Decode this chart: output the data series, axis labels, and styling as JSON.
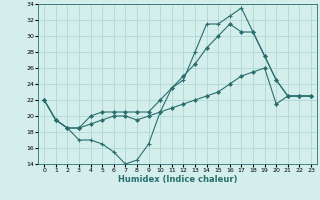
{
  "xlabel": "Humidex (Indice chaleur)",
  "ylabel": "",
  "bg_color": "#d4eeec",
  "grid_color": "#aed8d6",
  "line_color": "#2a6e6e",
  "xlim": [
    -0.5,
    23.5
  ],
  "ylim": [
    14,
    34
  ],
  "xticks": [
    0,
    1,
    2,
    3,
    4,
    5,
    6,
    7,
    8,
    9,
    10,
    11,
    12,
    13,
    14,
    15,
    16,
    17,
    18,
    19,
    20,
    21,
    22,
    23
  ],
  "yticks": [
    14,
    16,
    18,
    20,
    22,
    24,
    26,
    28,
    30,
    32,
    34
  ],
  "line1_x": [
    0,
    1,
    2,
    3,
    4,
    5,
    6,
    7,
    8,
    9,
    10,
    11,
    12,
    13,
    14,
    15,
    16,
    17,
    18,
    19,
    20,
    21,
    22,
    23
  ],
  "line1_y": [
    22,
    19.5,
    18.5,
    17.0,
    17.0,
    16.5,
    15.5,
    14.0,
    14.5,
    16.5,
    20.5,
    23.5,
    24.5,
    28.0,
    31.5,
    31.5,
    32.5,
    33.5,
    30.5,
    27.5,
    24.5,
    22.5,
    22.5,
    22.5
  ],
  "line2_x": [
    0,
    1,
    2,
    3,
    4,
    5,
    6,
    7,
    8,
    9,
    10,
    11,
    12,
    13,
    14,
    15,
    16,
    17,
    18,
    19,
    20,
    21,
    22,
    23
  ],
  "line2_y": [
    22,
    19.5,
    18.5,
    18.5,
    20.0,
    20.5,
    20.5,
    20.5,
    20.5,
    20.5,
    22.0,
    23.5,
    25.0,
    26.5,
    28.5,
    30.0,
    31.5,
    30.5,
    30.5,
    27.5,
    24.5,
    22.5,
    22.5,
    22.5
  ],
  "line3_x": [
    0,
    1,
    2,
    3,
    4,
    5,
    6,
    7,
    8,
    9,
    10,
    11,
    12,
    13,
    14,
    15,
    16,
    17,
    18,
    19,
    20,
    21,
    22,
    23
  ],
  "line3_y": [
    22,
    19.5,
    18.5,
    18.5,
    19.0,
    19.5,
    20.0,
    20.0,
    19.5,
    20.0,
    20.5,
    21.0,
    21.5,
    22.0,
    22.5,
    23.0,
    24.0,
    25.0,
    25.5,
    26.0,
    21.5,
    22.5,
    22.5,
    22.5
  ]
}
